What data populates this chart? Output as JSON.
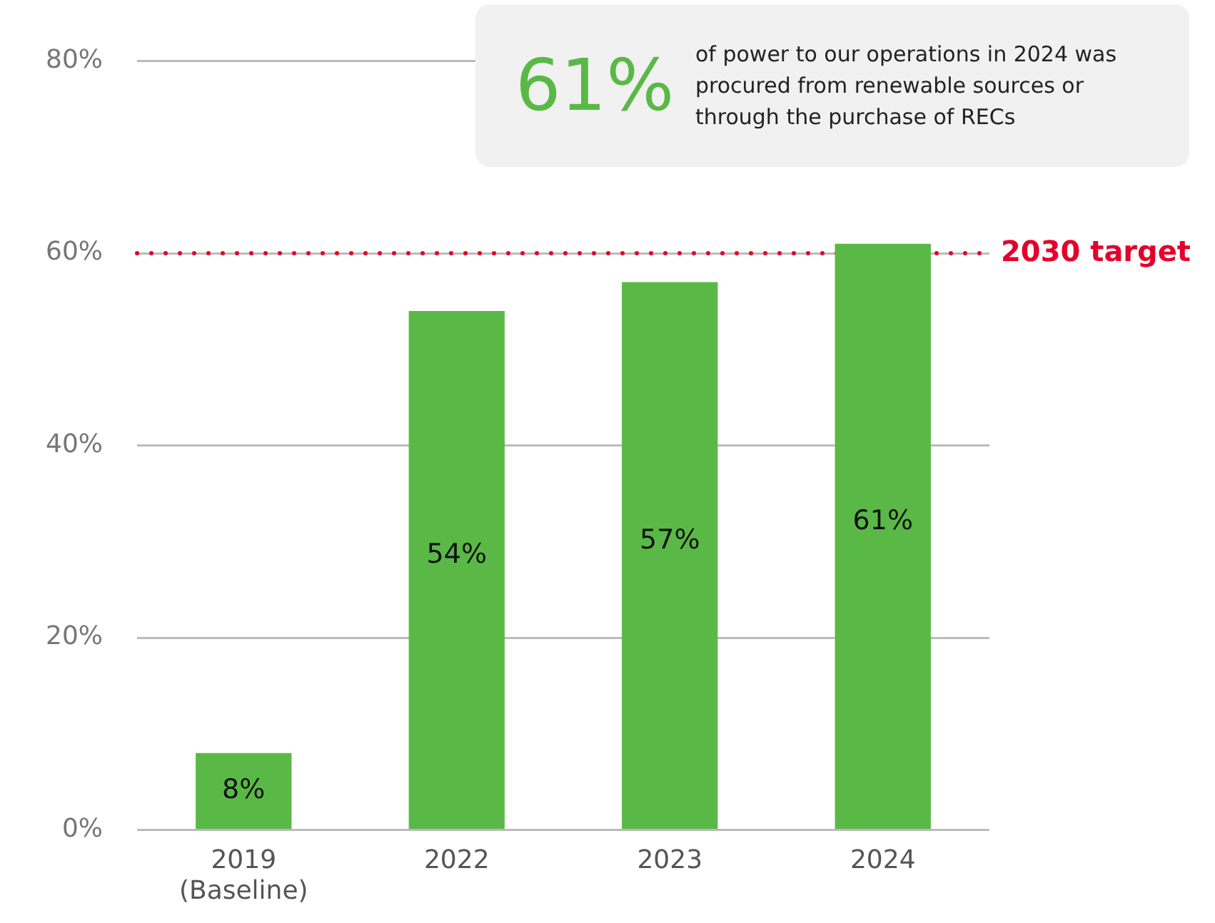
{
  "chart_data": {
    "type": "bar",
    "categories": [
      "2019 (Baseline)",
      "2022",
      "2023",
      "2024"
    ],
    "values": [
      8,
      54,
      57,
      61
    ],
    "color": "#5ab946",
    "value_labels": [
      "8%",
      "54%",
      "57%",
      "61%"
    ],
    "ylim": [
      0,
      80
    ],
    "yticks": [
      {
        "value": 0,
        "label": "0%"
      },
      {
        "value": 20,
        "label": "20%"
      },
      {
        "value": 40,
        "label": "40%"
      },
      {
        "value": 60,
        "label": "60%"
      },
      {
        "value": 80,
        "label": "80%"
      }
    ],
    "grid": "y",
    "legend": false,
    "ref_lines": [
      {
        "axis": "y",
        "value": 60,
        "label": "2030 target",
        "color": "#e4002b",
        "line_style": "dotted"
      }
    ],
    "annotations": [
      "61%",
      "of power to our operations in 2024 was procured from renewable sources or through the purchase of RECs"
    ]
  }
}
